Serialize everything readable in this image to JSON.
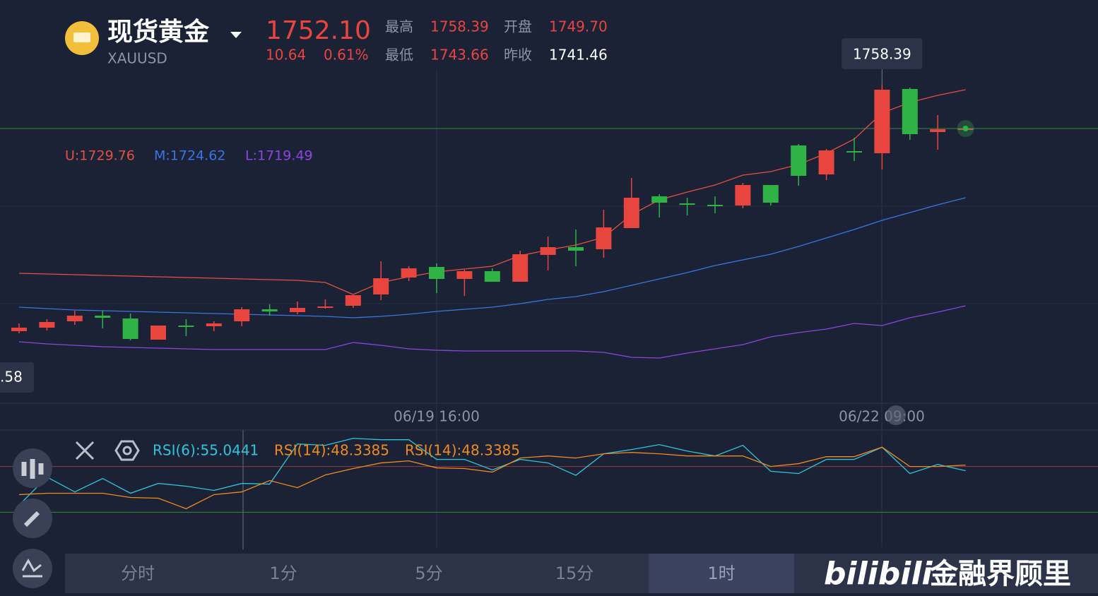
{
  "header": {
    "name": "现货黄金",
    "symbol": "XAUUSD",
    "price": "1752.10",
    "change": "10.64",
    "change_pct": "0.61%",
    "stats": [
      [
        "最高",
        "1758.39"
      ],
      [
        "开盘",
        "1749.70"
      ],
      [
        "最低",
        "1743.66"
      ],
      [
        "昨收",
        "1741.46"
      ]
    ]
  },
  "boll_legend": [
    "U:1729.76",
    "M:1724.62",
    "L:1719.49"
  ],
  "rsi_legend": [
    "RSI(6):55.0441",
    "RSI(14):48.3385",
    "RSI(14):48.3385"
  ],
  "price_tag": ".58",
  "tabs": [
    "分时",
    "1分",
    "5分",
    "15分",
    "1时"
  ],
  "watermark": [
    "bilibili",
    "金融界顾里"
  ],
  "chart_data": {
    "type": "candlestick",
    "x_labels": [
      "06/19 16:00",
      "06/22 09:00"
    ],
    "ylim": [
      1713,
      1761
    ],
    "up_color": "#e9453f",
    "down_color": "#2fb344",
    "candles": {
      "open": [
        1723.4,
        1723.9,
        1724.8,
        1725.6,
        1725.2,
        1722.2,
        1724.2,
        1724.1,
        1724.8,
        1726.5,
        1726.1,
        1726.7,
        1727.0,
        1728.6,
        1731.0,
        1732.5,
        1730.8,
        1731.9,
        1730.4,
        1734.2,
        1735.3,
        1735.0,
        1738.0,
        1742.5,
        1741.5,
        1741.3,
        1741.2,
        1744.1,
        1749.7,
        1745.6,
        1748.9,
        1748.6,
        1757.7,
        1751.6,
        1752.1
      ],
      "high": [
        1724.5,
        1725.1,
        1726.3,
        1726.3,
        1725.9,
        1724.2,
        1725.1,
        1724.8,
        1726.8,
        1727.2,
        1727.6,
        1727.9,
        1728.5,
        1733.3,
        1732.6,
        1733.0,
        1732.1,
        1732.3,
        1734.8,
        1736.8,
        1737.8,
        1740.6,
        1745.1,
        1742.8,
        1742.3,
        1742.5,
        1744.4,
        1744.1,
        1749.9,
        1749.2,
        1750.8,
        1758.39,
        1757.9,
        1754.0,
        1752.1
      ],
      "low": [
        1723.1,
        1723.5,
        1724.3,
        1723.8,
        1722.1,
        1722.2,
        1722.7,
        1723.4,
        1724.1,
        1725.6,
        1725.8,
        1726.6,
        1726.7,
        1727.8,
        1730.5,
        1728.8,
        1728.4,
        1730.4,
        1730.4,
        1732.0,
        1732.6,
        1733.8,
        1738.0,
        1739.5,
        1739.8,
        1740.1,
        1740.8,
        1741.2,
        1744.0,
        1744.8,
        1747.5,
        1746.3,
        1750.5,
        1749.1,
        1752.1
      ],
      "close": [
        1723.9,
        1724.7,
        1725.6,
        1725.3,
        1722.3,
        1724.2,
        1724.1,
        1724.5,
        1726.5,
        1726.2,
        1726.7,
        1726.9,
        1728.5,
        1730.9,
        1732.3,
        1730.8,
        1731.9,
        1730.4,
        1734.3,
        1735.3,
        1734.8,
        1738.1,
        1742.3,
        1741.6,
        1741.4,
        1741.2,
        1744.1,
        1741.6,
        1745.4,
        1749.0,
        1748.7,
        1757.6,
        1751.3,
        1752.0,
        1752.1
      ]
    },
    "bands": [
      {
        "color": "#e0513f",
        "values": [
          1731.6,
          1731.5,
          1731.4,
          1731.3,
          1731.2,
          1731.1,
          1731.0,
          1730.9,
          1730.8,
          1730.7,
          1730.6,
          1730.3,
          1728.6,
          1730.3,
          1731.1,
          1731.8,
          1732.2,
          1732.6,
          1734.1,
          1734.9,
          1735.6,
          1736.7,
          1739.9,
          1742.0,
          1743.1,
          1744.1,
          1745.5,
          1746.0,
          1747.0,
          1748.6,
          1750.6,
          1754.3,
          1755.8,
          1756.8,
          1757.6
        ]
      },
      {
        "color": "#3b74e0",
        "values": [
          1726.8,
          1726.6,
          1726.4,
          1726.3,
          1726.2,
          1726.1,
          1726.0,
          1725.9,
          1725.8,
          1725.7,
          1725.6,
          1725.5,
          1725.3,
          1725.5,
          1725.8,
          1726.2,
          1726.5,
          1726.8,
          1727.3,
          1727.9,
          1728.3,
          1729.0,
          1729.9,
          1730.8,
          1731.7,
          1732.7,
          1733.5,
          1734.3,
          1735.4,
          1736.6,
          1737.8,
          1739.1,
          1740.2,
          1741.3,
          1742.3
        ]
      },
      {
        "color": "#8a45e0",
        "values": [
          1721.9,
          1721.6,
          1721.4,
          1721.2,
          1721.1,
          1721.0,
          1720.9,
          1720.8,
          1720.8,
          1720.8,
          1720.8,
          1720.8,
          1721.8,
          1721.4,
          1720.9,
          1720.7,
          1720.6,
          1720.6,
          1720.6,
          1720.6,
          1720.6,
          1720.4,
          1719.7,
          1719.6,
          1720.3,
          1720.9,
          1721.5,
          1722.6,
          1723.2,
          1723.7,
          1724.5,
          1724.2,
          1725.3,
          1726.1,
          1727.0
        ]
      }
    ],
    "rsi": {
      "ylim": [
        0,
        100
      ],
      "levels": [
        {
          "value": 30,
          "color": "#2e8a3c"
        },
        {
          "value": 70,
          "color": "#8a3a3a"
        }
      ],
      "series": [
        {
          "color": "#2fc4d8",
          "values": [
            36.2,
            60.8,
            47.8,
            59.5,
            46.6,
            55.2,
            52.8,
            49.1,
            55.2,
            54.6,
            89.7,
            88.5,
            94.6,
            93.4,
            93.4,
            76.2,
            76.2,
            67.0,
            76.2,
            73.1,
            62.3,
            81.1,
            84.8,
            89.1,
            83.5,
            79.2,
            88.5,
            65.8,
            63.8,
            76.2,
            76.2,
            86.9,
            63.8,
            71.8,
            66.3
          ]
        },
        {
          "color": "#f08a1e",
          "values": [
            45.4,
            46.6,
            46.6,
            46.6,
            42.9,
            42.3,
            33.1,
            45.4,
            47.8,
            57.7,
            51.5,
            62.6,
            68.2,
            73.1,
            74.9,
            68.8,
            68.2,
            65.1,
            77.4,
            79.2,
            77.4,
            81.1,
            82.3,
            81.1,
            79.2,
            79.2,
            79.2,
            70.0,
            72.5,
            78.6,
            78.6,
            86.9,
            70.0,
            70.0,
            71.2
          ]
        }
      ]
    }
  }
}
